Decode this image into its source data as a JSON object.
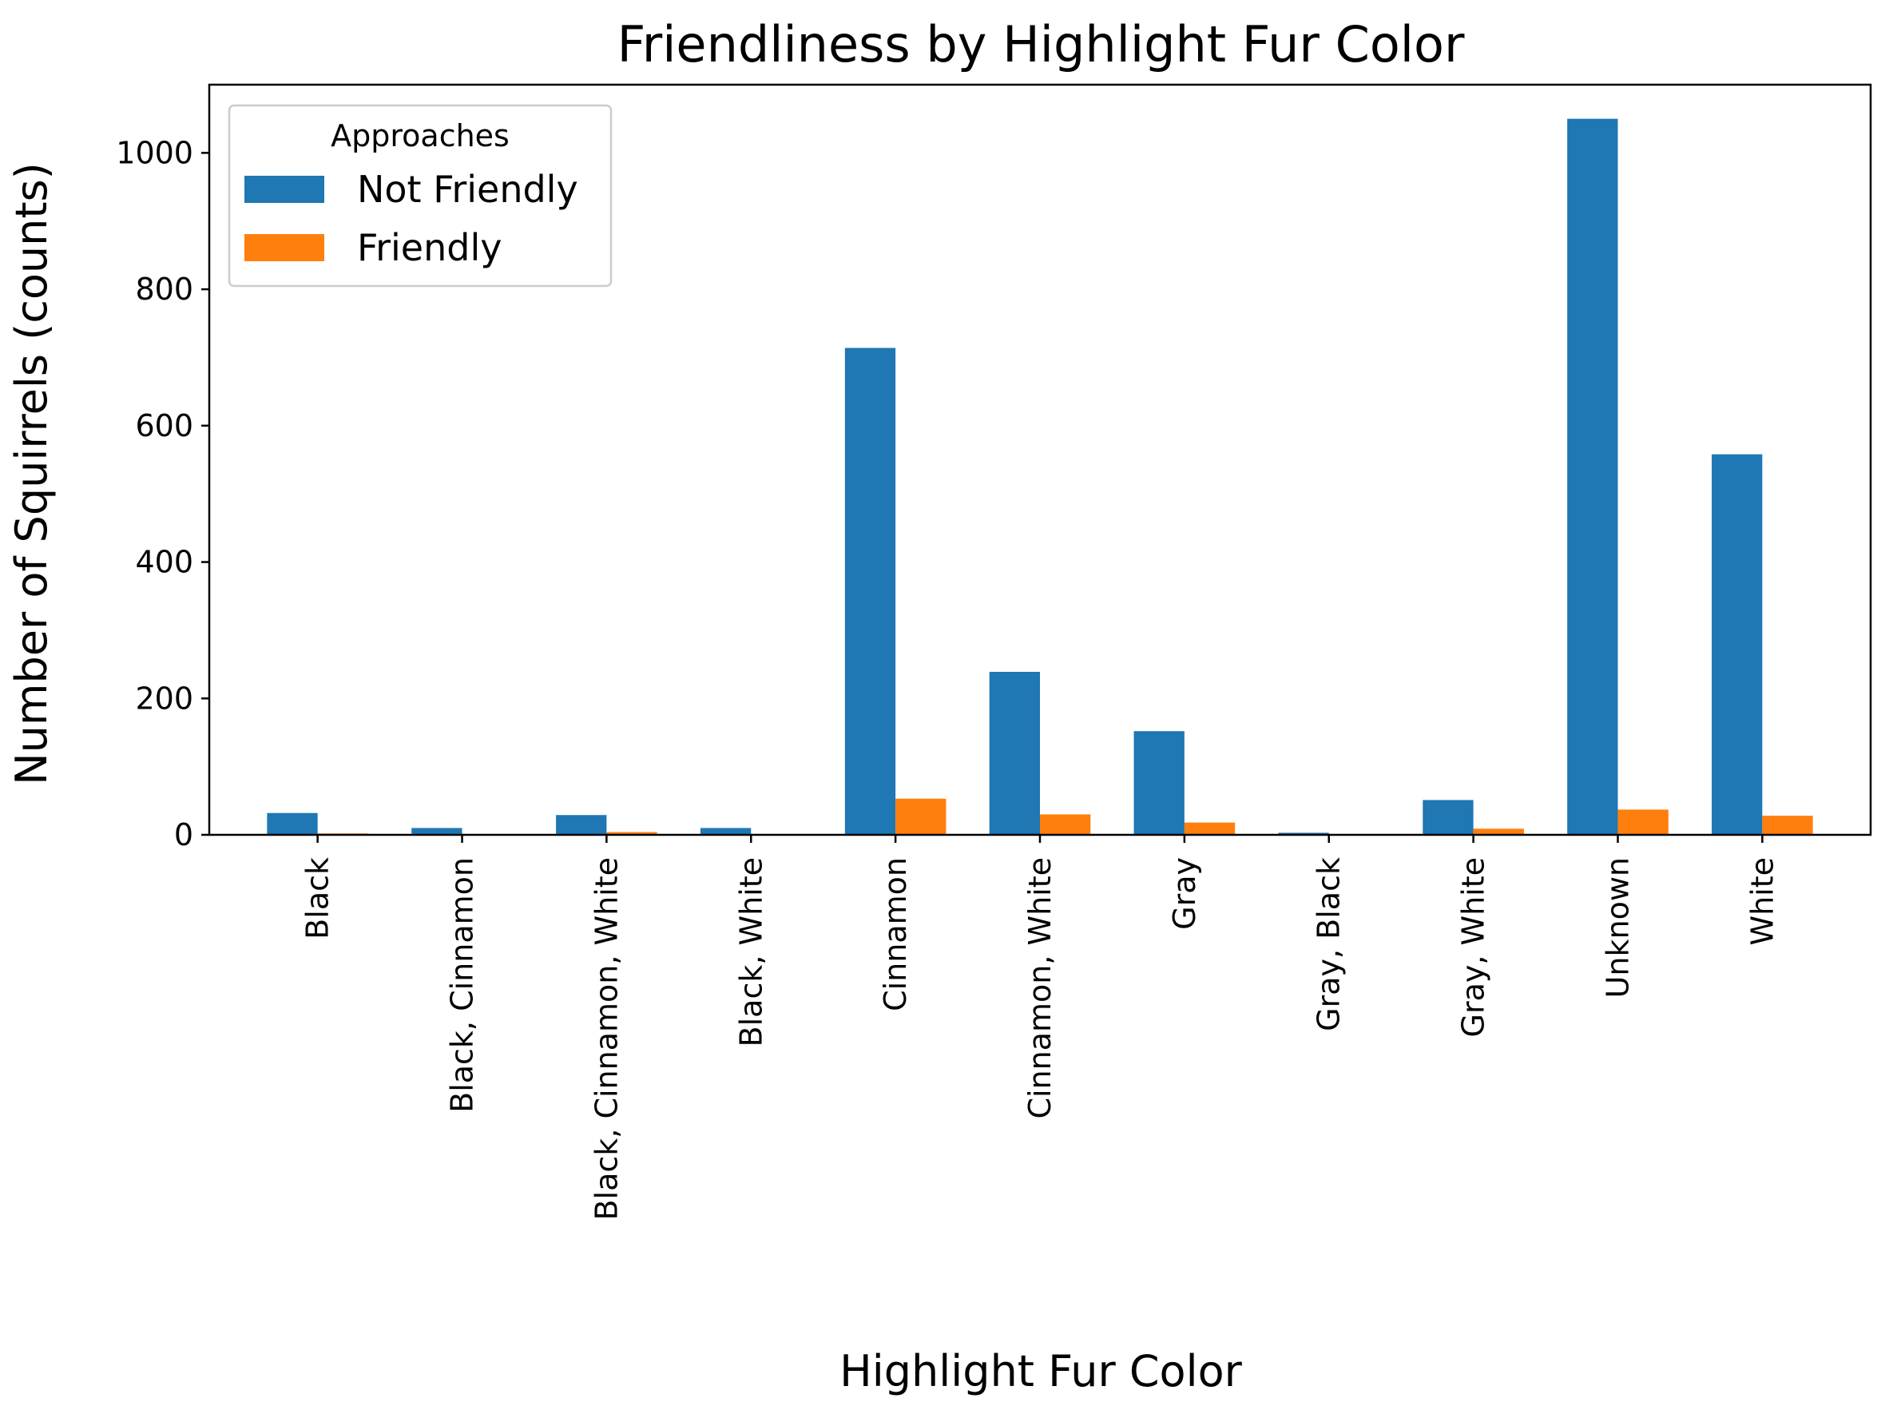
{
  "chart_data": {
    "type": "bar",
    "title": "Friendliness by Highlight Fur Color",
    "xlabel": "Highlight Fur Color",
    "ylabel": "Number of Squirrels (counts)",
    "categories": [
      "Black",
      "Black, Cinnamon",
      "Black, Cinnamon, White",
      "Black, White",
      "Cinnamon",
      "Cinnamon, White",
      "Gray",
      "Gray, Black",
      "Gray, White",
      "Unknown",
      "White"
    ],
    "series": [
      {
        "name": "Not Friendly",
        "color": "#1f77b4",
        "values": [
          32,
          10,
          29,
          10,
          714,
          239,
          152,
          3,
          51,
          1050,
          558
        ]
      },
      {
        "name": "Friendly",
        "color": "#ff7f0e",
        "values": [
          2,
          0,
          4,
          0,
          53,
          30,
          18,
          0,
          9,
          37,
          28
        ]
      }
    ],
    "ylim": [
      0,
      1100
    ],
    "yticks": [
      0,
      200,
      400,
      600,
      800,
      1000
    ],
    "legend": {
      "title": "Approaches",
      "position": "top-left"
    },
    "grid": false
  }
}
